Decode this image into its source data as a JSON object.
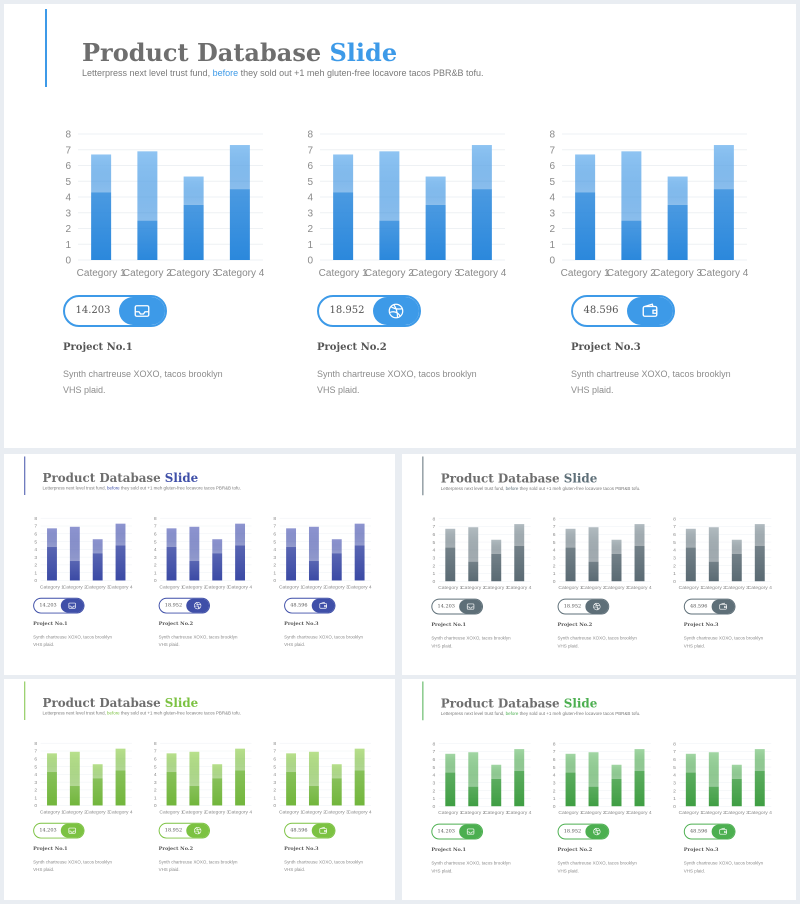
{
  "slide": {
    "title_main": "Product Database",
    "title_accent": "Slide",
    "subtitle_pre": "Letterpress next level trust fund,",
    "subtitle_link": "before",
    "subtitle_post": "they sold out +1 meh gluten-free locavore tacos PBR&B tofu."
  },
  "colors": {
    "text_gray": "#6e6e6e",
    "themes": [
      {
        "name": "blue",
        "accent": "#3d9ae8",
        "bar_top": "#8fc4f2",
        "bar_bottom": "#2b88dc",
        "title_accent": "#3d9ae8"
      },
      {
        "name": "indigo",
        "accent": "#3f4fa8",
        "bar_top": "#8e95d0",
        "bar_bottom": "#3b4aa5",
        "title_accent": "#3f4fa8"
      },
      {
        "name": "slate",
        "accent": "#5e6f78",
        "bar_top": "#b2bcc1",
        "bar_bottom": "#5a6a73",
        "title_accent": "#5e6f78"
      },
      {
        "name": "lime",
        "accent": "#7cc242",
        "bar_top": "#b8e08c",
        "bar_bottom": "#72b63c",
        "title_accent": "#7cc242"
      },
      {
        "name": "green",
        "accent": "#4caf50",
        "bar_top": "#a2d6a4",
        "bar_bottom": "#3f9e43",
        "title_accent": "#4caf50"
      }
    ]
  },
  "chart_data": [
    {
      "type": "bar",
      "categories": [
        "Category 1",
        "Category 2",
        "Category 3",
        "Category 4"
      ],
      "series": [
        {
          "values": [
            4.3,
            2.5,
            3.5,
            4.5
          ]
        },
        {
          "values": [
            2.4,
            4.4,
            1.8,
            2.8
          ]
        }
      ],
      "stacked": true,
      "ylim": [
        0,
        8
      ],
      "yticks": [
        0,
        1,
        2,
        3,
        4,
        5,
        6,
        7,
        8
      ],
      "grid": true
    },
    {
      "type": "bar",
      "categories": [
        "Category 1",
        "Category 2",
        "Category 3",
        "Category 4"
      ],
      "series": [
        {
          "values": [
            4.3,
            2.5,
            3.5,
            4.5
          ]
        },
        {
          "values": [
            2.4,
            4.4,
            1.8,
            2.8
          ]
        }
      ],
      "stacked": true,
      "ylim": [
        0,
        8
      ],
      "yticks": [
        0,
        1,
        2,
        3,
        4,
        5,
        6,
        7,
        8
      ],
      "grid": true
    },
    {
      "type": "bar",
      "categories": [
        "Category 1",
        "Category 2",
        "Category 3",
        "Category 4"
      ],
      "series": [
        {
          "values": [
            4.3,
            2.5,
            3.5,
            4.5
          ]
        },
        {
          "values": [
            2.4,
            4.4,
            1.8,
            2.8
          ]
        }
      ],
      "stacked": true,
      "ylim": [
        0,
        8
      ],
      "yticks": [
        0,
        1,
        2,
        3,
        4,
        5,
        6,
        7,
        8
      ],
      "grid": true
    }
  ],
  "projects": [
    {
      "value": "14.203",
      "icon": "inbox-icon",
      "title": "Project No.1",
      "desc": "Synth chartreuse XOXO, tacos brooklyn VHS plaid."
    },
    {
      "value": "18.952",
      "icon": "dribbble-icon",
      "title": "Project No.2",
      "desc": "Synth chartreuse XOXO, tacos brooklyn VHS plaid."
    },
    {
      "value": "48.596",
      "icon": "wallet-icon",
      "title": "Project No.3",
      "desc": "Synth chartreuse XOXO, tacos brooklyn VHS plaid."
    }
  ]
}
